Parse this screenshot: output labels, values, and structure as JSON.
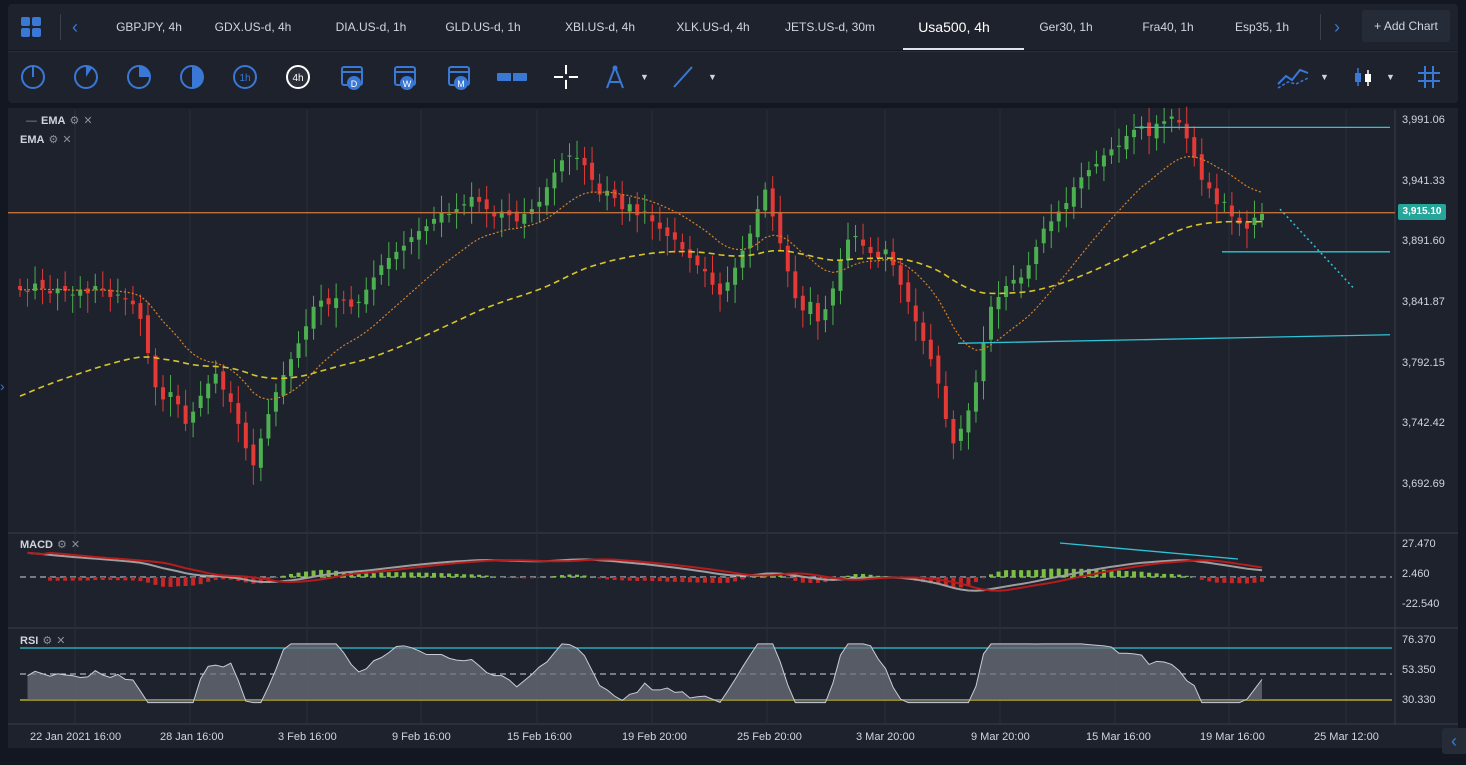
{
  "tabs": [
    {
      "label": "GBPJPY, 4h"
    },
    {
      "label": "GDX.US-d, 4h"
    },
    {
      "label": "DIA.US-d, 1h"
    },
    {
      "label": "GLD.US-d, 1h"
    },
    {
      "label": "XBI.US-d, 4h"
    },
    {
      "label": "XLK.US-d, 4h"
    },
    {
      "label": "JETS.US-d, 30m"
    },
    {
      "label": "Usa500, 4h"
    },
    {
      "label": "Ger30, 1h"
    },
    {
      "label": "Fra40, 1h"
    },
    {
      "label": "Esp35, 1h"
    }
  ],
  "active_tab": "Usa500, 4h",
  "add_chart_label": "+ Add Chart",
  "toolbar": {
    "timeframe_icons": [
      "1m",
      "5m",
      "15m",
      "30m",
      "1h",
      "4h"
    ],
    "period_icons": [
      "D",
      "W",
      "M"
    ],
    "active_timeframe": "4h"
  },
  "indicators": {
    "main": [
      "EMA",
      "EMA"
    ],
    "macd": "MACD",
    "rsi": "RSI"
  },
  "price_axis": [
    "3,991.06",
    "3,941.33",
    "3,891.60",
    "3,841.87",
    "3,792.15",
    "3,742.42",
    "3,692.69"
  ],
  "current_price": "3,915.10",
  "macd_axis": [
    "27.470",
    "2.460",
    "-22.540"
  ],
  "rsi_axis": [
    "76.370",
    "53.350",
    "30.330"
  ],
  "time_axis": [
    "22 Jan 2021 16:00",
    "28 Jan 16:00",
    "3 Feb 16:00",
    "9 Feb 16:00",
    "15 Feb 16:00",
    "19 Feb 20:00",
    "25 Feb 20:00",
    "3 Mar 20:00",
    "9 Mar 20:00",
    "15 Mar 16:00",
    "19 Mar 16:00",
    "25 Mar 12:00"
  ],
  "colors": {
    "up": "#4caf50",
    "down": "#e53935",
    "ema_fast": "#d4822a",
    "ema_slow": "#d7c52a",
    "trendline": "#2ec4d6",
    "accent": "#3a78d6"
  },
  "chart_data": {
    "type": "candlestick",
    "symbol": "Usa500",
    "interval": "4h",
    "ylim": [
      3670,
      4010
    ],
    "closes": [
      3852,
      3850,
      3857,
      3853,
      3849,
      3853,
      3851,
      3848,
      3852,
      3849,
      3855,
      3852,
      3846,
      3848,
      3844,
      3840,
      3828,
      3800,
      3772,
      3762,
      3768,
      3758,
      3742,
      3752,
      3765,
      3775,
      3783,
      3770,
      3760,
      3742,
      3722,
      3708,
      3730,
      3750,
      3768,
      3782,
      3795,
      3808,
      3822,
      3838,
      3843,
      3840,
      3845,
      3843,
      3838,
      3842,
      3852,
      3862,
      3872,
      3878,
      3883,
      3888,
      3895,
      3900,
      3904,
      3910,
      3915,
      3914,
      3918,
      3922,
      3928,
      3924,
      3918,
      3912,
      3916,
      3913,
      3908,
      3914,
      3918,
      3924,
      3936,
      3948,
      3958,
      3962,
      3960,
      3954,
      3942,
      3930,
      3933,
      3927,
      3918,
      3922,
      3913,
      3916,
      3908,
      3902,
      3896,
      3893,
      3885,
      3878,
      3872,
      3867,
      3856,
      3848,
      3858,
      3870,
      3884,
      3898,
      3918,
      3934,
      3912,
      3890,
      3867,
      3845,
      3835,
      3842,
      3826,
      3836,
      3853,
      3876,
      3893,
      3896,
      3888,
      3882,
      3878,
      3885,
      3872,
      3856,
      3842,
      3826,
      3810,
      3795,
      3775,
      3746,
      3726,
      3738,
      3753,
      3776,
      3808,
      3838,
      3846,
      3855,
      3860,
      3862,
      3872,
      3887,
      3902,
      3908,
      3916,
      3923,
      3936,
      3944,
      3950,
      3955,
      3962,
      3967,
      3970,
      3978,
      3983,
      3986,
      3978,
      3988,
      3990,
      3994,
      3989,
      3976,
      3960,
      3942,
      3935,
      3922,
      3924,
      3912,
      3906,
      3902,
      3911,
      3914
    ]
  },
  "trendlines": [
    {
      "name": "resistance",
      "price": 3985
    },
    {
      "name": "support-upper",
      "price": 3883
    },
    {
      "name": "support-lower",
      "price": 3812
    }
  ]
}
